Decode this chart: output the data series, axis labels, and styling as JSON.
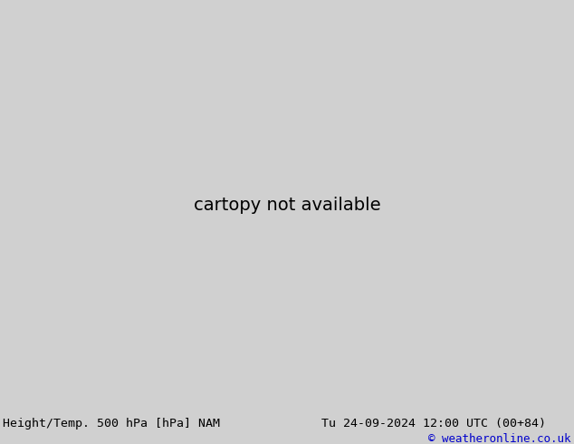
{
  "title_left": "Height/Temp. 500 hPa [hPa] NAM",
  "title_right": "Tu 24-09-2024 12:00 UTC (00+84)",
  "copyright": "© weatheronline.co.uk",
  "bg_color": "#d0d0d0",
  "ocean_color": "#c8c8c8",
  "land_color": "#c8c8c8",
  "green_fill_color": "#b8e890",
  "bottom_bar_color": "#e0e0e8",
  "title_fontsize": 9.5,
  "copyright_color": "#0000cc",
  "label_fontsize": 8,
  "map_extent": [
    -170,
    -50,
    15,
    75
  ]
}
